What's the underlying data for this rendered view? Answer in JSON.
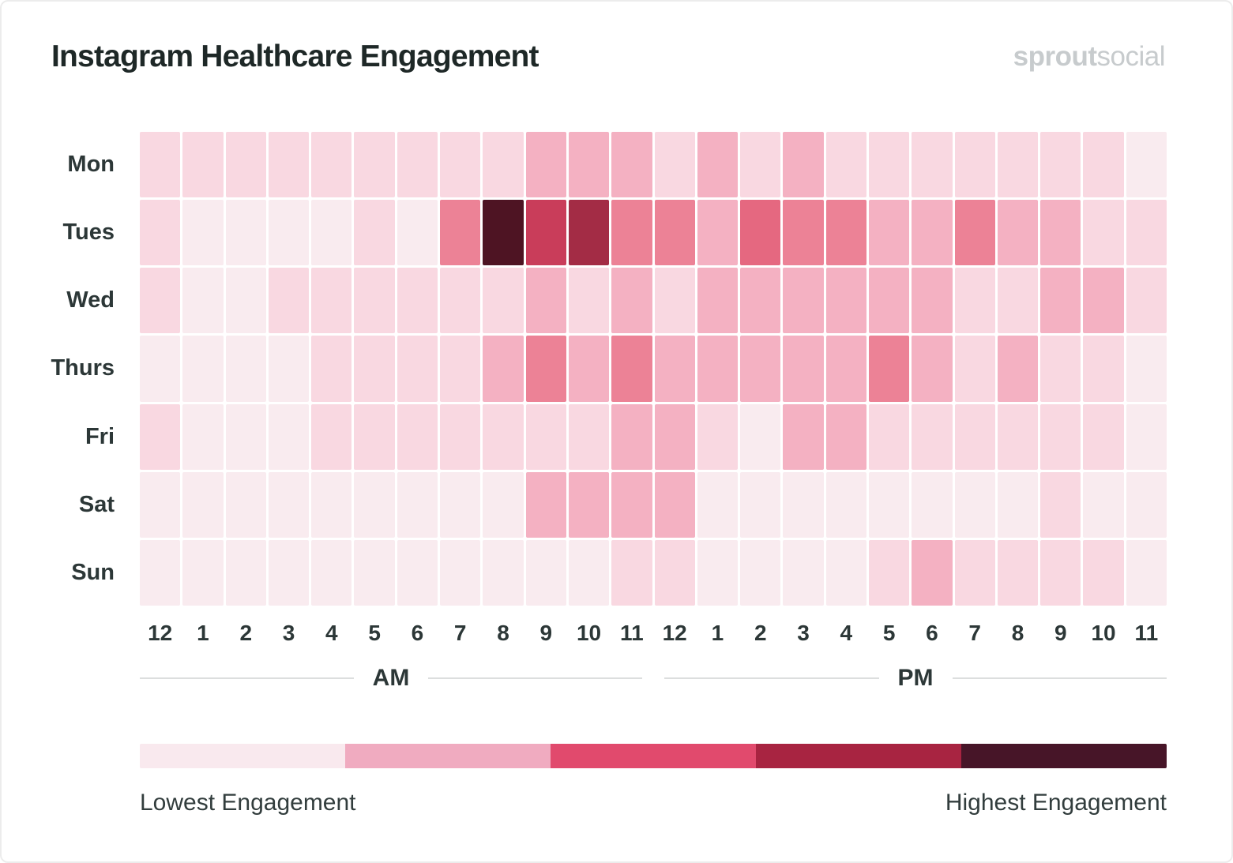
{
  "header": {
    "title": "Instagram Healthcare Engagement",
    "logo_bold": "sprout",
    "logo_light": "social"
  },
  "legend": {
    "lowest": "Lowest Engagement",
    "highest": "Highest Engagement",
    "colors": [
      "#f9e9ee",
      "#f0abc0",
      "#e14a6d",
      "#a82441",
      "#471528"
    ]
  },
  "chart_data": {
    "type": "heatmap",
    "title": "Instagram Healthcare Engagement",
    "rows": [
      "Mon",
      "Tues",
      "Wed",
      "Thurs",
      "Fri",
      "Sat",
      "Sun"
    ],
    "columns": [
      "12",
      "1",
      "2",
      "3",
      "4",
      "5",
      "6",
      "7",
      "8",
      "9",
      "10",
      "11",
      "12",
      "1",
      "2",
      "3",
      "4",
      "5",
      "6",
      "7",
      "8",
      "9",
      "10",
      "11"
    ],
    "period_labels": [
      "AM",
      "PM"
    ],
    "level_meaning": "engagement level 0 = lowest, 7 = highest",
    "palette": [
      "#f9ebef",
      "#f9d8e1",
      "#f4b1c2",
      "#ec8296",
      "#e56880",
      "#c93d5a",
      "#a32c45",
      "#4e1423"
    ],
    "values": [
      [
        1,
        1,
        1,
        1,
        1,
        1,
        1,
        1,
        1,
        2,
        2,
        2,
        1,
        2,
        1,
        2,
        1,
        1,
        1,
        1,
        1,
        1,
        1,
        0
      ],
      [
        1,
        0,
        0,
        0,
        0,
        1,
        0,
        3,
        7,
        5,
        6,
        3,
        3,
        2,
        4,
        3,
        3,
        2,
        2,
        3,
        2,
        2,
        1,
        1
      ],
      [
        1,
        0,
        0,
        1,
        1,
        1,
        1,
        1,
        1,
        2,
        1,
        2,
        1,
        2,
        2,
        2,
        2,
        2,
        2,
        1,
        1,
        2,
        2,
        1
      ],
      [
        0,
        0,
        0,
        0,
        1,
        1,
        1,
        1,
        2,
        3,
        2,
        3,
        2,
        2,
        2,
        2,
        2,
        3,
        2,
        1,
        2,
        1,
        1,
        0
      ],
      [
        1,
        0,
        0,
        0,
        1,
        1,
        1,
        1,
        1,
        1,
        1,
        2,
        2,
        1,
        0,
        2,
        2,
        1,
        1,
        1,
        1,
        1,
        1,
        0
      ],
      [
        0,
        0,
        0,
        0,
        0,
        0,
        0,
        0,
        0,
        2,
        2,
        2,
        2,
        0,
        0,
        0,
        0,
        0,
        0,
        0,
        0,
        1,
        0,
        0
      ],
      [
        0,
        0,
        0,
        0,
        0,
        0,
        0,
        0,
        0,
        0,
        0,
        1,
        1,
        0,
        0,
        0,
        0,
        1,
        2,
        1,
        1,
        1,
        1,
        0
      ]
    ],
    "legend_colors": [
      "#f9e9ee",
      "#f0abc0",
      "#e14a6d",
      "#a82441",
      "#471528"
    ],
    "legend_labels": [
      "Lowest Engagement",
      "Highest Engagement"
    ]
  }
}
